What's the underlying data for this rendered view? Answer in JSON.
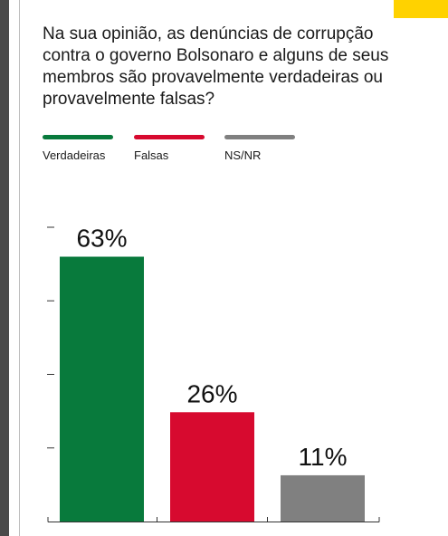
{
  "page": {
    "accent_color": "#ffd200",
    "rule_color": "#4a4a4a"
  },
  "title": "Na sua opinião, as denúncias de corrupção contra o governo Bolsonaro e alguns de seus membros são provavelmente verdadeiras ou provavelmente falsas?",
  "legend": [
    {
      "label": "Verdadeiras",
      "color": "#087a3c"
    },
    {
      "label": "Falsas",
      "color": "#d70a2f"
    },
    {
      "label": "NS/NR",
      "color": "#808080"
    }
  ],
  "chart_data": {
    "type": "bar",
    "title": "Na sua opinião, as denúncias de corrupção contra o governo Bolsonaro e alguns de seus membros são provavelmente verdadeiras ou provavelmente falsas?",
    "categories": [
      "Verdadeiras",
      "Falsas",
      "NS/NR"
    ],
    "values": [
      63,
      26,
      11
    ],
    "value_labels": [
      "63%",
      "26%",
      "11%"
    ],
    "colors": [
      "#087a3c",
      "#d70a2f",
      "#808080"
    ],
    "ylim": [
      0,
      70
    ],
    "xlabel": "",
    "ylabel": "",
    "grid": false,
    "legend_position": "top-left"
  }
}
